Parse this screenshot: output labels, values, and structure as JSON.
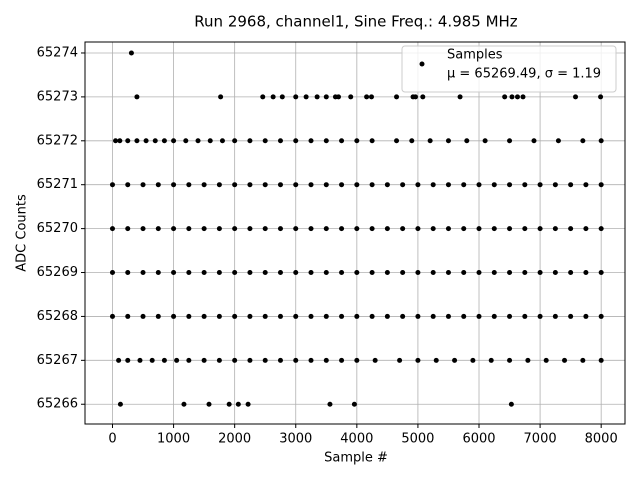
{
  "chart_data": {
    "type": "scatter",
    "title": "Run 2968, channel1, Sine Freq.: 4.985 MHz",
    "x_label": "Sample #",
    "y_label": "ADC Counts",
    "xlim": [
      -450,
      8390
    ],
    "ylim": [
      65265.55,
      65274.25
    ],
    "xticks": [
      0,
      1000,
      2000,
      3000,
      4000,
      5000,
      6000,
      7000,
      8000
    ],
    "yticks": [
      65266,
      65267,
      65268,
      65269,
      65270,
      65271,
      65272,
      65273,
      65274
    ],
    "grid": true,
    "legend": "upper right",
    "legend_note": "μ = 65269.49, σ = 1.19",
    "series": [
      {
        "name": "Samples",
        "color": "#000000",
        "x": [
          0,
          250,
          500,
          750,
          1000,
          1250,
          1500,
          1750,
          2000,
          2250,
          2500,
          2750,
          3000,
          3250,
          3500,
          3750,
          4000,
          4250,
          4500,
          4750,
          5000,
          5250,
          5500,
          5750,
          6000,
          6250,
          6500,
          6750,
          7000,
          7250,
          7500,
          7750,
          8000,
          0,
          250,
          500,
          750,
          1000,
          1250,
          1500,
          1750,
          2000,
          2250,
          2500,
          2750,
          3000,
          3250,
          3500,
          3750,
          4000,
          4250,
          4500,
          4750,
          5000,
          5250,
          5500,
          5750,
          6000,
          6250,
          6500,
          6750,
          7000,
          7250,
          7500,
          7750,
          8000,
          0,
          250,
          500,
          750,
          1000,
          1250,
          1500,
          1750,
          2000,
          2250,
          2500,
          2750,
          3000,
          3250,
          3500,
          3750,
          4000,
          4250,
          4500,
          4750,
          5000,
          5250,
          5500,
          5750,
          6000,
          6250,
          6500,
          6750,
          7000,
          7250,
          7500,
          7750,
          8000,
          0,
          250,
          500,
          750,
          1000,
          1250,
          1500,
          1750,
          2000,
          2250,
          2500,
          2750,
          3000,
          3250,
          3500,
          3750,
          4000,
          4250,
          4500,
          4750,
          5000,
          5250,
          5500,
          5750,
          6000,
          6250,
          6500,
          6750,
          7000,
          7250,
          7500,
          7750,
          8000,
          50,
          120,
          250,
          400,
          550,
          700,
          850,
          1000,
          1200,
          1400,
          1600,
          1800,
          2000,
          2250,
          2500,
          2750,
          3000,
          3250,
          3500,
          3750,
          4000,
          4250,
          4650,
          4900,
          5200,
          5500,
          5800,
          6100,
          6500,
          6900,
          7300,
          7700,
          8000,
          100,
          250,
          450,
          650,
          850,
          1050,
          1250,
          1500,
          1750,
          2000,
          2250,
          2500,
          2750,
          3000,
          3250,
          3500,
          3750,
          4000,
          4300,
          4700,
          5000,
          5300,
          5600,
          5900,
          6200,
          6500,
          6800,
          7100,
          7400,
          7700,
          8000,
          400,
          1770,
          2460,
          2630,
          2780,
          3000,
          3170,
          3350,
          3500,
          3650,
          3700,
          3900,
          4160,
          4240,
          4650,
          4920,
          4960,
          5080,
          5690,
          6420,
          6540,
          6630,
          6720,
          7580,
          7990,
          130,
          1170,
          1580,
          1910,
          2060,
          2220,
          3560,
          3960,
          6530,
          310
        ],
        "values": [
          65268,
          65268,
          65268,
          65268,
          65268,
          65268,
          65268,
          65268,
          65268,
          65268,
          65268,
          65268,
          65268,
          65268,
          65268,
          65268,
          65268,
          65268,
          65268,
          65268,
          65268,
          65268,
          65268,
          65268,
          65268,
          65268,
          65268,
          65268,
          65268,
          65268,
          65268,
          65268,
          65268,
          65269,
          65269,
          65269,
          65269,
          65269,
          65269,
          65269,
          65269,
          65269,
          65269,
          65269,
          65269,
          65269,
          65269,
          65269,
          65269,
          65269,
          65269,
          65269,
          65269,
          65269,
          65269,
          65269,
          65269,
          65269,
          65269,
          65269,
          65269,
          65269,
          65269,
          65269,
          65269,
          65269,
          65270,
          65270,
          65270,
          65270,
          65270,
          65270,
          65270,
          65270,
          65270,
          65270,
          65270,
          65270,
          65270,
          65270,
          65270,
          65270,
          65270,
          65270,
          65270,
          65270,
          65270,
          65270,
          65270,
          65270,
          65270,
          65270,
          65270,
          65270,
          65270,
          65270,
          65270,
          65270,
          65270,
          65271,
          65271,
          65271,
          65271,
          65271,
          65271,
          65271,
          65271,
          65271,
          65271,
          65271,
          65271,
          65271,
          65271,
          65271,
          65271,
          65271,
          65271,
          65271,
          65271,
          65271,
          65271,
          65271,
          65271,
          65271,
          65271,
          65271,
          65271,
          65271,
          65271,
          65271,
          65271,
          65271,
          65272,
          65272,
          65272,
          65272,
          65272,
          65272,
          65272,
          65272,
          65272,
          65272,
          65272,
          65272,
          65272,
          65272,
          65272,
          65272,
          65272,
          65272,
          65272,
          65272,
          65272,
          65272,
          65272,
          65272,
          65272,
          65272,
          65272,
          65272,
          65272,
          65272,
          65272,
          65272,
          65272,
          65267,
          65267,
          65267,
          65267,
          65267,
          65267,
          65267,
          65267,
          65267,
          65267,
          65267,
          65267,
          65267,
          65267,
          65267,
          65267,
          65267,
          65267,
          65267,
          65267,
          65267,
          65267,
          65267,
          65267,
          65267,
          65267,
          65267,
          65267,
          65267,
          65267,
          65267,
          65273,
          65273,
          65273,
          65273,
          65273,
          65273,
          65273,
          65273,
          65273,
          65273,
          65273,
          65273,
          65273,
          65273,
          65273,
          65273,
          65273,
          65273,
          65273,
          65273,
          65273,
          65273,
          65273,
          65273,
          65273,
          65266,
          65266,
          65266,
          65266,
          65266,
          65266,
          65266,
          65266,
          65266,
          65274
        ]
      }
    ]
  }
}
